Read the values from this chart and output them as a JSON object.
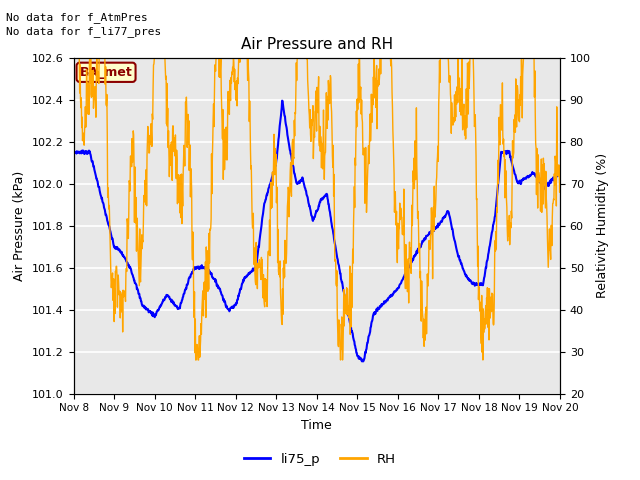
{
  "title": "Air Pressure and RH",
  "top_text_line1": "No data for f_AtmPres",
  "top_text_line2": "No data for f_li77_pres",
  "box_label": "BA_met",
  "xlabel": "Time",
  "ylabel_left": "Air Pressure (kPa)",
  "ylabel_right": "Relativity Humidity (%)",
  "ylim_left": [
    101.0,
    102.6
  ],
  "ylim_right": [
    20,
    100
  ],
  "yticks_left": [
    101.0,
    101.2,
    101.4,
    101.6,
    101.8,
    102.0,
    102.2,
    102.4,
    102.6
  ],
  "yticks_right": [
    20,
    30,
    40,
    50,
    60,
    70,
    80,
    90,
    100
  ],
  "xtick_labels": [
    "Nov 8",
    "Nov 9",
    "Nov 10",
    "Nov 11",
    "Nov 12",
    "Nov 13",
    "Nov 14",
    "Nov 15",
    "Nov 16",
    "Nov 17",
    "Nov 18",
    "Nov 19",
    "Nov 20"
  ],
  "legend_labels": [
    "li75_p",
    "RH"
  ],
  "line_color_pressure": "blue",
  "line_color_rh": "orange",
  "background_color": "#e8e8e8",
  "grid_color": "white"
}
